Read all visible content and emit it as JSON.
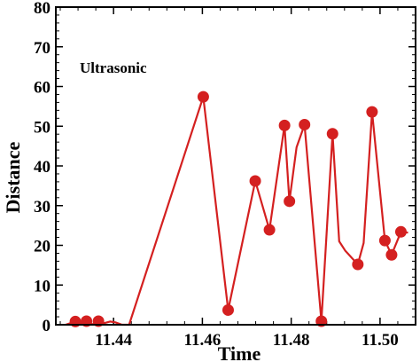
{
  "chart_data": {
    "type": "line",
    "xlabel": "Time",
    "ylabel": "Distance",
    "xlim": [
      11.427,
      11.508
    ],
    "ylim": [
      0,
      80
    ],
    "xticks": [
      11.44,
      11.46,
      11.48,
      11.5
    ],
    "xtick_labels": [
      "11.44",
      "11.46",
      "11.48",
      "11.50"
    ],
    "yticks": [
      0,
      10,
      20,
      30,
      40,
      50,
      60,
      70,
      80
    ],
    "ytick_labels": [
      "0",
      "10",
      "20",
      "30",
      "40",
      "50",
      "60",
      "70",
      "80"
    ],
    "annotation": "Ultrasonic",
    "grid": false,
    "color": "#d42020",
    "series": [
      {
        "line": [
          [
            11.4292,
            0
          ],
          [
            11.4314,
            0.8
          ],
          [
            11.4327,
            0.3
          ],
          [
            11.4339,
            0.9
          ],
          [
            11.4353,
            0.1
          ],
          [
            11.4366,
            0.9
          ],
          [
            11.4379,
            0.4
          ],
          [
            11.4392,
            0.8
          ],
          [
            11.4404,
            0.6
          ],
          [
            11.4419,
            0
          ],
          [
            11.4435,
            0
          ],
          [
            11.4602,
            57.4
          ],
          [
            11.4658,
            3.7
          ],
          [
            11.4719,
            36.2
          ],
          [
            11.4751,
            23.9
          ],
          [
            11.4785,
            50.2
          ],
          [
            11.4796,
            31.1
          ],
          [
            11.4812,
            44.7
          ],
          [
            11.483,
            50.4
          ],
          [
            11.4868,
            0.9
          ],
          [
            11.4893,
            48.1
          ],
          [
            11.4908,
            21.0
          ],
          [
            11.4922,
            18.6
          ],
          [
            11.495,
            15.2
          ],
          [
            11.4963,
            20.6
          ],
          [
            11.4982,
            53.6
          ],
          [
            11.5011,
            21.2
          ],
          [
            11.5026,
            17.6
          ],
          [
            11.5047,
            23.4
          ],
          [
            11.5063,
            23.2
          ]
        ],
        "markers": [
          [
            11.4314,
            0.8
          ],
          [
            11.4339,
            0.9
          ],
          [
            11.4366,
            0.9
          ],
          [
            11.4602,
            57.4
          ],
          [
            11.4658,
            3.7
          ],
          [
            11.4719,
            36.2
          ],
          [
            11.4751,
            23.9
          ],
          [
            11.4785,
            50.2
          ],
          [
            11.4796,
            31.1
          ],
          [
            11.483,
            50.4
          ],
          [
            11.4868,
            0.9
          ],
          [
            11.4893,
            48.1
          ],
          [
            11.495,
            15.2
          ],
          [
            11.4982,
            53.6
          ],
          [
            11.5011,
            21.2
          ],
          [
            11.5026,
            17.6
          ],
          [
            11.5047,
            23.4
          ]
        ]
      }
    ]
  }
}
